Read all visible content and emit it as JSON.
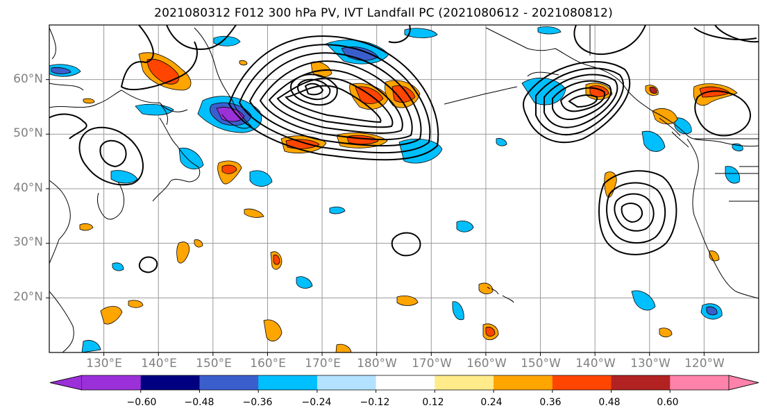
{
  "title": "2021080312 F012 300 hPa PV, IVT Landfall PC (2021080612 - 2021080812)",
  "map": {
    "lat_ticks": [
      "60°N",
      "50°N",
      "40°N",
      "30°N",
      "20°N"
    ],
    "lat_values": [
      60,
      50,
      40,
      30,
      20
    ],
    "lon_ticks": [
      "130°E",
      "140°E",
      "150°E",
      "160°E",
      "170°E",
      "180°W",
      "170°W",
      "160°W",
      "150°W",
      "140°W",
      "130°W",
      "120°W"
    ],
    "lon_values": [
      130,
      140,
      150,
      160,
      170,
      180,
      190,
      200,
      210,
      220,
      230,
      240
    ],
    "extent": {
      "lon_min": 120,
      "lon_max": 250,
      "lat_min": 10,
      "lat_max": 70
    }
  },
  "colorbar": {
    "labels": [
      "−0.60",
      "−0.48",
      "−0.36",
      "−0.24",
      "−0.12",
      "0.12",
      "0.24",
      "0.36",
      "0.48",
      "0.60"
    ],
    "colors": [
      "#9b30d9",
      "#000080",
      "#3a5fcd",
      "#00bfff",
      "#b2e2ff",
      "#ffffff",
      "#ffeb8a",
      "#ffa500",
      "#ff4500",
      "#b22222",
      "#ff82ab"
    ]
  }
}
